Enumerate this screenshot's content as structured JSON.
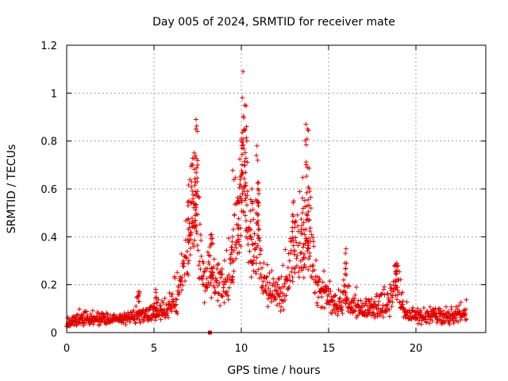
{
  "chart_data": {
    "type": "scatter",
    "title": "Day 005 of 2024, SRMTID for receiver mate",
    "xlabel": "GPS time / hours",
    "ylabel": "SRMTID / TECUs",
    "xlim": [
      0,
      24
    ],
    "ylim": [
      0,
      1.2
    ],
    "xticks": [
      0,
      5,
      10,
      15,
      20
    ],
    "xtick_labels": [
      "0",
      "5",
      "10",
      "15",
      "20"
    ],
    "yticks": [
      0,
      0.2,
      0.4,
      0.6,
      0.8,
      1.0,
      1.2
    ],
    "ytick_labels": [
      "0",
      "0.2",
      "0.4",
      "0.6",
      "0.8",
      "1",
      "1.2"
    ],
    "grid": true,
    "series": [
      {
        "name": "SRMTID",
        "color": "#e00000",
        "marker": "plus",
        "baseline": [
          [
            0.0,
            0.04
          ],
          [
            1.0,
            0.05
          ],
          [
            2.0,
            0.05
          ],
          [
            3.0,
            0.05
          ],
          [
            4.0,
            0.06
          ],
          [
            5.0,
            0.07
          ],
          [
            5.8,
            0.09
          ],
          [
            6.5,
            0.15
          ],
          [
            6.9,
            0.3
          ],
          [
            7.1,
            0.45
          ],
          [
            7.35,
            0.6
          ],
          [
            7.6,
            0.3
          ],
          [
            7.9,
            0.18
          ],
          [
            8.2,
            0.25
          ],
          [
            8.5,
            0.17
          ],
          [
            8.9,
            0.17
          ],
          [
            9.2,
            0.2
          ],
          [
            9.6,
            0.35
          ],
          [
            9.9,
            0.45
          ],
          [
            10.15,
            0.65
          ],
          [
            10.4,
            0.35
          ],
          [
            10.7,
            0.28
          ],
          [
            10.9,
            0.4
          ],
          [
            11.2,
            0.18
          ],
          [
            11.6,
            0.15
          ],
          [
            12.0,
            0.14
          ],
          [
            12.4,
            0.15
          ],
          [
            12.8,
            0.25
          ],
          [
            13.2,
            0.3
          ],
          [
            13.6,
            0.38
          ],
          [
            13.9,
            0.35
          ],
          [
            14.3,
            0.18
          ],
          [
            14.8,
            0.15
          ],
          [
            15.2,
            0.13
          ],
          [
            15.6,
            0.1
          ],
          [
            16.0,
            0.12
          ],
          [
            16.4,
            0.1
          ],
          [
            17.0,
            0.08
          ],
          [
            17.8,
            0.09
          ],
          [
            18.4,
            0.1
          ],
          [
            18.9,
            0.2
          ],
          [
            19.3,
            0.08
          ],
          [
            20.0,
            0.06
          ],
          [
            21.0,
            0.06
          ],
          [
            22.0,
            0.06
          ],
          [
            22.8,
            0.07
          ]
        ],
        "peaks": [
          [
            7.0,
            0.55
          ],
          [
            7.15,
            0.63
          ],
          [
            7.3,
            0.75
          ],
          [
            7.4,
            0.85
          ],
          [
            7.5,
            0.7
          ],
          [
            8.3,
            0.41
          ],
          [
            9.5,
            0.4
          ],
          [
            9.8,
            0.55
          ],
          [
            10.0,
            0.8
          ],
          [
            10.1,
            1.09
          ],
          [
            10.2,
            0.95
          ],
          [
            10.3,
            0.86
          ],
          [
            10.6,
            0.6
          ],
          [
            10.9,
            0.78
          ],
          [
            11.0,
            0.58
          ],
          [
            13.0,
            0.55
          ],
          [
            13.5,
            0.5
          ],
          [
            13.7,
            0.87
          ],
          [
            13.8,
            0.85
          ],
          [
            13.9,
            0.6
          ],
          [
            16.0,
            0.35
          ],
          [
            18.9,
            0.29
          ],
          [
            5.1,
            0.18
          ],
          [
            4.1,
            0.17
          ]
        ],
        "outlier": [
          8.2,
          0.0
        ]
      }
    ]
  }
}
